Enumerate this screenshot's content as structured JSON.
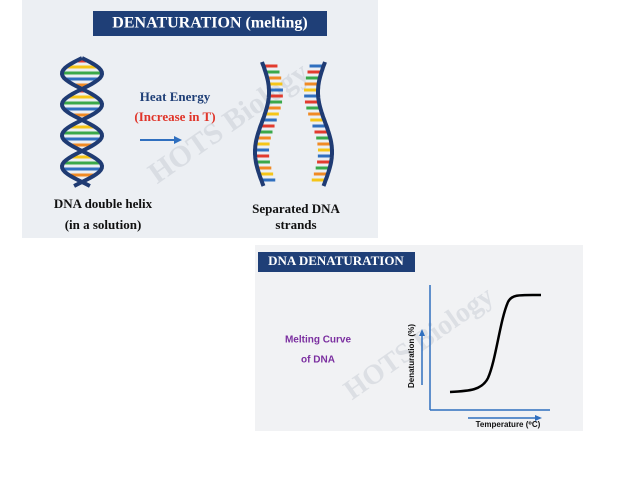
{
  "top_panel": {
    "title": "DENATURATION (melting)",
    "process_label": "Heat Energy",
    "process_condition": "(Increase in T)",
    "left_caption": [
      "DNA double helix",
      "(in a solution)"
    ],
    "right_caption": [
      "Separated DNA",
      "strands"
    ],
    "watermark": "HOTS Biology"
  },
  "bottom_panel": {
    "title": "DNA DENATURATION",
    "curve_label": [
      "Melting Curve",
      "of DNA"
    ],
    "y_axis_label": "Denaturation (%)",
    "x_axis_label": "Temperature (⁰C)",
    "watermark": "HOTS Biology"
  }
}
